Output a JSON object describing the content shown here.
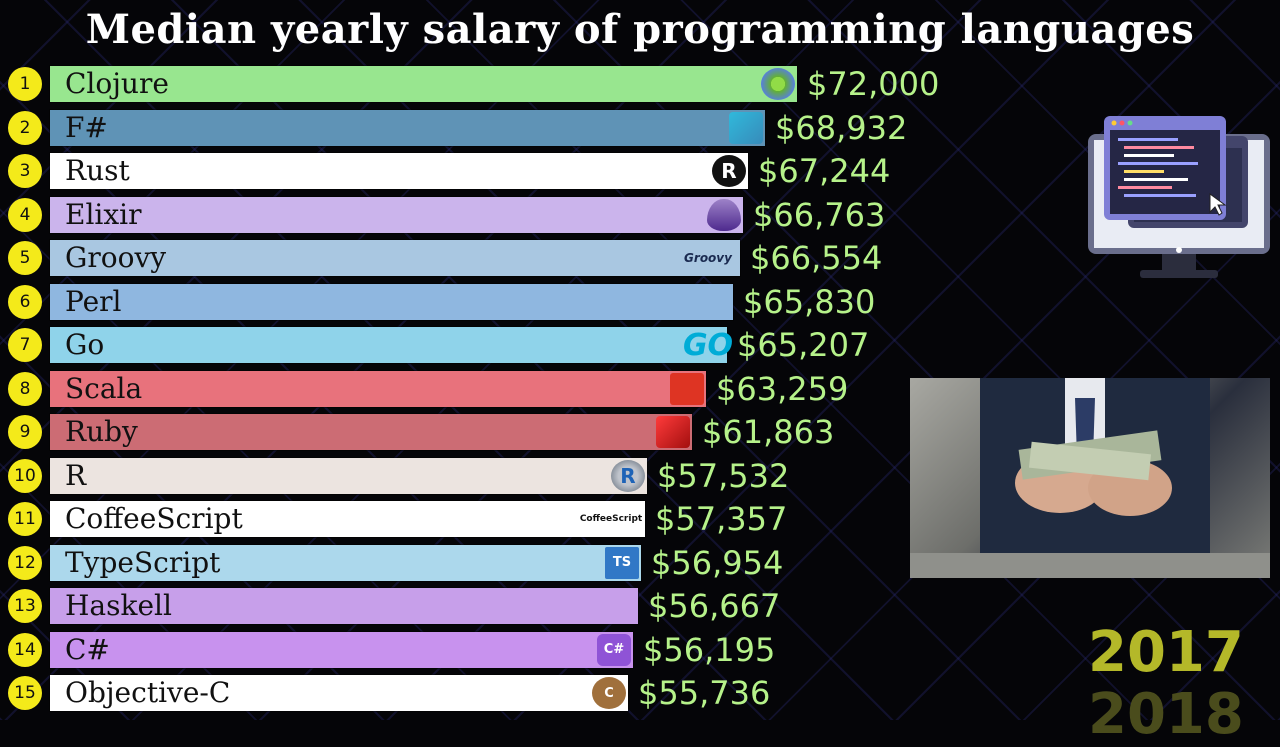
{
  "title": "Median yearly salary of programming languages",
  "chart_data": {
    "type": "bar",
    "orientation": "horizontal",
    "title": "Median yearly salary of programming languages",
    "value_prefix": "$",
    "xlim": [
      0,
      72000
    ],
    "ranks": [
      "1",
      "2",
      "3",
      "4",
      "5",
      "6",
      "7",
      "8",
      "9",
      "10",
      "11",
      "12",
      "13",
      "14",
      "15"
    ],
    "categories": [
      "Clojure",
      "F#",
      "Rust",
      "Elixir",
      "Groovy",
      "Perl",
      "Go",
      "Scala",
      "Ruby",
      "R",
      "CoffeeScript",
      "TypeScript",
      "Haskell",
      "C#",
      "Objective-C"
    ],
    "values": [
      72000,
      68932,
      67244,
      66763,
      66554,
      65830,
      65207,
      63259,
      61863,
      57532,
      57357,
      56954,
      56667,
      56195,
      55736
    ],
    "value_labels": [
      "$72,000",
      "$68,932",
      "$67,244",
      "$66,763",
      "$66,554",
      "$65,830",
      "$65,207",
      "$63,259",
      "$61,863",
      "$57,532",
      "$57,357",
      "$56,954",
      "$56,667",
      "$56,195",
      "$55,736"
    ],
    "bar_colors": [
      "#98e68f",
      "#5f93b6",
      "#ffffff",
      "#cbb4ec",
      "#a9c7e1",
      "#8fb7e0",
      "#8fd3ea",
      "#e8727c",
      "#cc6c74",
      "#ece4e0",
      "#ffffff",
      "#acd8ec",
      "#c79fea",
      "#c892ee",
      "#ffffff"
    ],
    "icons": [
      "clojure-icon",
      "fsharp-icon",
      "rust-icon",
      "elixir-icon",
      "groovy-icon",
      "perl-camel-icon",
      "go-icon",
      "scala-icon",
      "ruby-icon",
      "r-icon",
      "coffeescript-icon",
      "typescript-icon",
      "haskell-icon",
      "csharp-icon",
      "objective-c-icon"
    ],
    "icon_texts": [
      "",
      "",
      "R",
      "",
      "Groovy",
      "",
      "GO",
      "",
      "",
      "R",
      "CoffeeScript",
      "TS",
      "",
      "C#",
      "C"
    ]
  },
  "years": {
    "current": "2017",
    "next": "2018"
  },
  "colors": {
    "background": "#050508",
    "value_text": "#b6f28a",
    "rank_badge": "#f4ea1a",
    "year_text": "#b4b829"
  },
  "images": {
    "monitor": "code-monitor-icon",
    "photo": "hands-counting-money-photo"
  }
}
